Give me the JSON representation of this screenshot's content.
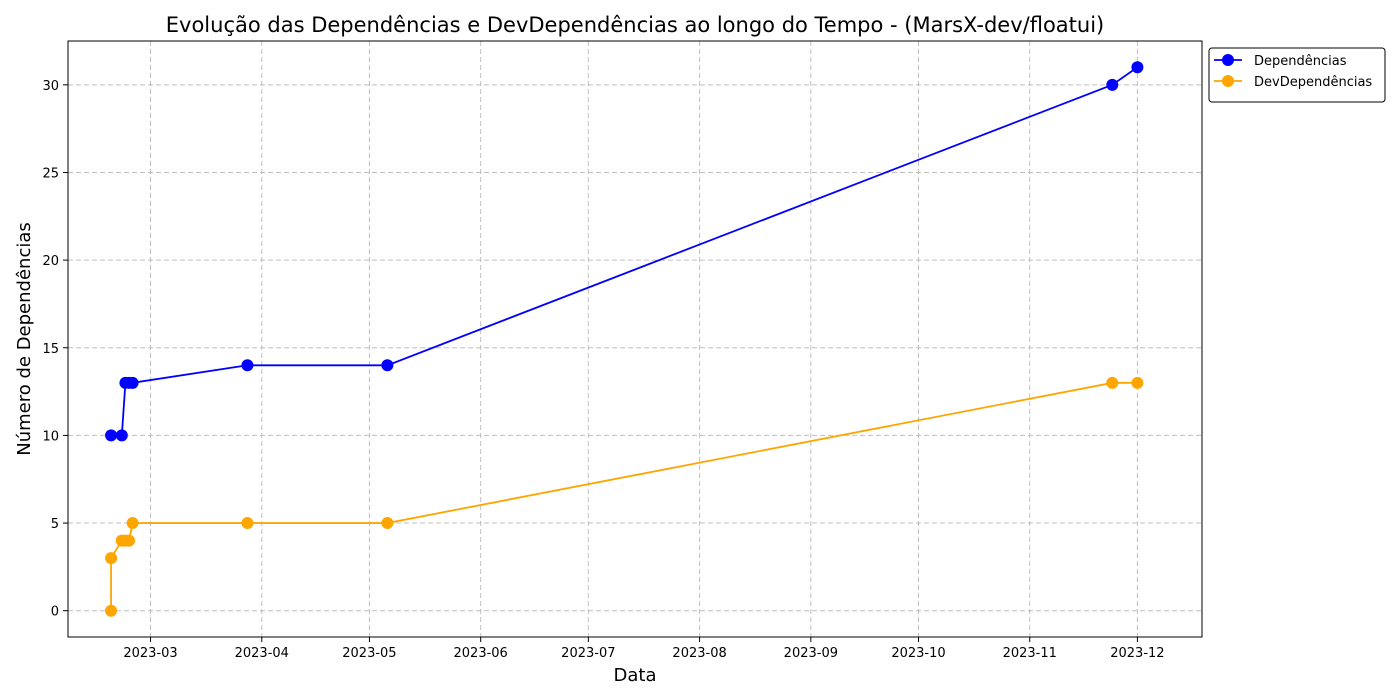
{
  "chart_data": {
    "type": "line",
    "title": "Evolução das Dependências e DevDependências ao longo do Tempo - (MarsX-dev/floatui)",
    "xlabel": "Data",
    "ylabel": "Número de Dependências",
    "x_type": "date",
    "xlim": [
      "2023-02-06",
      "2023-12-19"
    ],
    "ylim": [
      -1.5,
      32.5
    ],
    "x_ticks": [
      "2023-03-01",
      "2023-04-01",
      "2023-05-01",
      "2023-06-01",
      "2023-07-01",
      "2023-08-01",
      "2023-09-01",
      "2023-10-01",
      "2023-11-01",
      "2023-12-01"
    ],
    "x_tick_labels": [
      "2023-03",
      "2023-04",
      "2023-05",
      "2023-06",
      "2023-07",
      "2023-08",
      "2023-09",
      "2023-10",
      "2023-11",
      "2023-12"
    ],
    "y_ticks": [
      0,
      5,
      10,
      15,
      20,
      25,
      30
    ],
    "grid": true,
    "legend_position": "outside-top-right",
    "series": [
      {
        "name": "Dependências",
        "color": "#0000ff",
        "marker": "circle",
        "points": [
          {
            "x": "2023-02-18",
            "y": 10
          },
          {
            "x": "2023-02-21",
            "y": 10
          },
          {
            "x": "2023-02-22",
            "y": 13
          },
          {
            "x": "2023-02-23",
            "y": 13
          },
          {
            "x": "2023-02-24",
            "y": 13
          },
          {
            "x": "2023-03-28",
            "y": 14
          },
          {
            "x": "2023-05-06",
            "y": 14
          },
          {
            "x": "2023-11-24",
            "y": 30
          },
          {
            "x": "2023-12-01",
            "y": 31
          }
        ]
      },
      {
        "name": "DevDependências",
        "color": "#ffa500",
        "marker": "circle",
        "points": [
          {
            "x": "2023-02-18",
            "y": 0
          },
          {
            "x": "2023-02-18",
            "y": 3
          },
          {
            "x": "2023-02-21",
            "y": 4
          },
          {
            "x": "2023-02-22",
            "y": 4
          },
          {
            "x": "2023-02-23",
            "y": 4
          },
          {
            "x": "2023-02-24",
            "y": 5
          },
          {
            "x": "2023-03-28",
            "y": 5
          },
          {
            "x": "2023-05-06",
            "y": 5
          },
          {
            "x": "2023-11-24",
            "y": 13
          },
          {
            "x": "2023-12-01",
            "y": 13
          }
        ]
      }
    ]
  }
}
